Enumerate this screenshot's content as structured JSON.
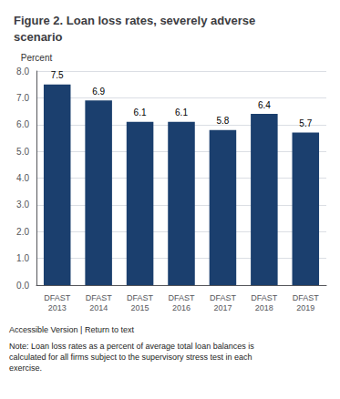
{
  "chart_data": {
    "type": "bar",
    "title": "Figure 2. Loan loss rates, severely adverse\nscenario",
    "categories": [
      "DFAST\n2013",
      "DFAST\n2014",
      "DFAST\n2015",
      "DFAST\n2016",
      "DFAST\n2017",
      "DFAST\n2018",
      "DFAST\n2019"
    ],
    "values": [
      7.5,
      6.9,
      6.1,
      6.1,
      5.8,
      6.4,
      5.7
    ],
    "color": "#1b3f6e",
    "ylabel": "Percent",
    "ylim": [
      0.0,
      8.0
    ],
    "yticks": [
      {
        "value": 0,
        "label": "0.0"
      },
      {
        "value": 1,
        "label": "1.0"
      },
      {
        "value": 2,
        "label": "2.0"
      },
      {
        "value": 3,
        "label": "3.0"
      },
      {
        "value": 4,
        "label": "4.0"
      },
      {
        "value": 5,
        "label": "5.0"
      },
      {
        "value": 6,
        "label": "6.0"
      },
      {
        "value": 7,
        "label": "7.0"
      },
      {
        "value": 8,
        "label": "8.0"
      }
    ],
    "grid": true,
    "data_labels": true,
    "annotations": [
      "Accessible Version | Return to text",
      "Note: Loan loss rates as a percent of average total loan balances is\ncalculated for all firms subject to the supervisory stress test in each\nexercise."
    ]
  }
}
